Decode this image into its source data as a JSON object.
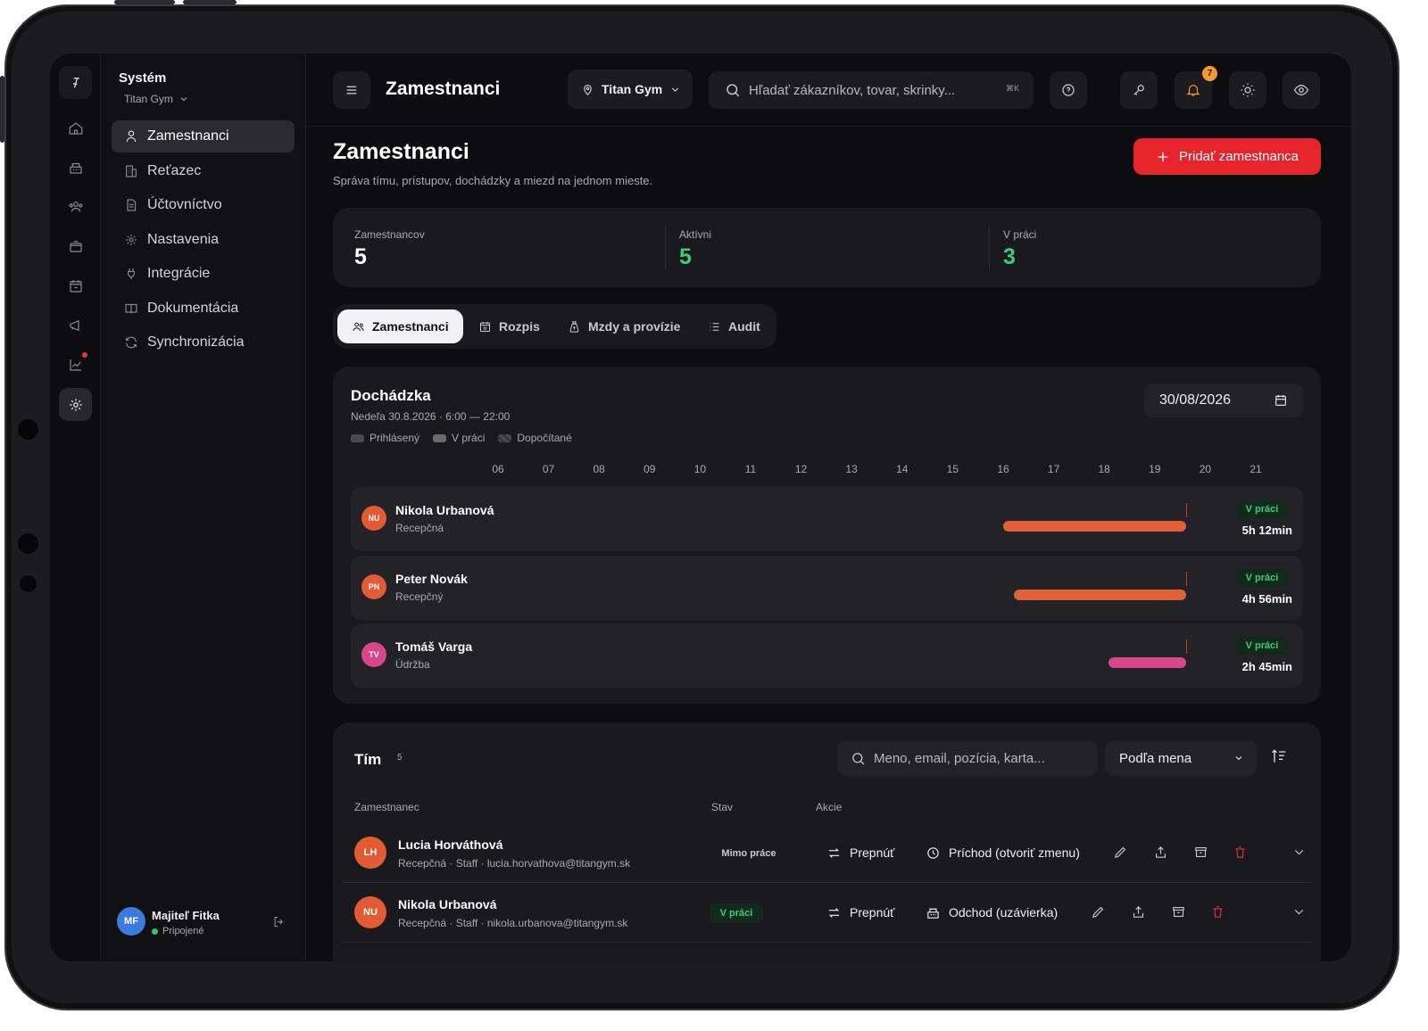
{
  "colors": {
    "accent_red": "#e5242c",
    "active_green": "#35d07a",
    "bar_orange": "#e0603a",
    "bar_pink": "#d9478a",
    "avatar_blue": "#3b7be0"
  },
  "rail": {
    "icons": [
      "logo-icon",
      "home-icon",
      "register-icon",
      "users-icon",
      "store-icon",
      "calendar-icon",
      "megaphone-icon",
      "chart-icon",
      "settings-icon"
    ],
    "active": "settings-icon"
  },
  "sidebar": {
    "title": "Systém",
    "subtitle": "Titan Gym",
    "items": [
      {
        "label": "Zamestnanci",
        "icon": "user-icon",
        "active": true
      },
      {
        "label": "Reťazec",
        "icon": "building-icon",
        "active": false
      },
      {
        "label": "Účtovníctvo",
        "icon": "document-icon",
        "active": false
      },
      {
        "label": "Nastavenia",
        "icon": "gear-icon",
        "active": false
      },
      {
        "label": "Integrácie",
        "icon": "plug-icon",
        "active": false
      },
      {
        "label": "Dokumentácia",
        "icon": "book-icon",
        "active": false
      },
      {
        "label": "Synchronizácia",
        "icon": "sync-icon",
        "active": false
      }
    ],
    "user": {
      "initials": "MF",
      "name": "Majiteľ Fitka",
      "status": "Pripojené"
    }
  },
  "topbar": {
    "title": "Zamestnanci",
    "gym": "Titan Gym",
    "search_placeholder": "Hľadať zákazníkov, tovar, skrinky...",
    "shortcut": "⌘K",
    "notifications": "7"
  },
  "page": {
    "title": "Zamestnanci",
    "subtitle": "Správa tímu, prístupov, dochádzky a miezd na jednom mieste.",
    "add_button": "Pridať zamestnanca"
  },
  "stats": [
    {
      "label": "Zamestnancov",
      "value": "5"
    },
    {
      "label": "Aktívni",
      "value": "5"
    },
    {
      "label": "V práci",
      "value": "3"
    }
  ],
  "tabs": [
    {
      "label": "Zamestnanci",
      "icon": "users-icon",
      "active": true
    },
    {
      "label": "Rozpis",
      "icon": "calendar-icon",
      "active": false
    },
    {
      "label": "Mzdy a provízie",
      "icon": "money-bag-icon",
      "active": false
    },
    {
      "label": "Audit",
      "icon": "list-icon",
      "active": false
    }
  ],
  "attendance": {
    "title": "Dochádzka",
    "subtitle": "Nedeľa 30.8.2026 · 6:00 — 22:00",
    "legend": [
      "Prihlásený",
      "V práci",
      "Dopočítané"
    ],
    "date": "30/08/2026",
    "hours": [
      "06",
      "07",
      "08",
      "09",
      "10",
      "11",
      "12",
      "13",
      "14",
      "15",
      "16",
      "17",
      "18",
      "19",
      "20",
      "21"
    ],
    "rows": [
      {
        "initials": "NU",
        "name": "Nikola Urbanová",
        "role": "Recepčná",
        "status": "V práci",
        "duration": "5h 12min",
        "start_hour": 16.0,
        "end_hour": 19.63,
        "color": "#e0603a"
      },
      {
        "initials": "PN",
        "name": "Peter Novák",
        "role": "Recepčný",
        "status": "V práci",
        "duration": "4h 56min",
        "start_hour": 16.22,
        "end_hour": 19.63,
        "color": "#e0603a"
      },
      {
        "initials": "TV",
        "name": "Tomáš Varga",
        "role": "Údržba",
        "status": "V práci",
        "duration": "2h 45min",
        "start_hour": 18.08,
        "end_hour": 19.63,
        "color": "#d9478a"
      }
    ]
  },
  "team": {
    "title": "Tím",
    "count": "5",
    "search_placeholder": "Meno, email, pozícia, karta...",
    "sort": "Podľa mena",
    "columns": [
      "Zamestnanec",
      "Stav",
      "Akcie"
    ],
    "rows": [
      {
        "initials": "LH",
        "name": "Lucia Horváthová",
        "meta": "Recepčná · Staff · lucia.horvathova@titangym.sk",
        "status": "Mimo práce",
        "action1": "Prepnúť",
        "action2": "Príchod (otvoriť zmenu)"
      },
      {
        "initials": "NU",
        "name": "Nikola Urbanová",
        "meta": "Recepčná · Staff · nikola.urbanova@titangym.sk",
        "status": "V práci",
        "action1": "Prepnúť",
        "action2": "Odchod (uzávierka)"
      }
    ]
  }
}
